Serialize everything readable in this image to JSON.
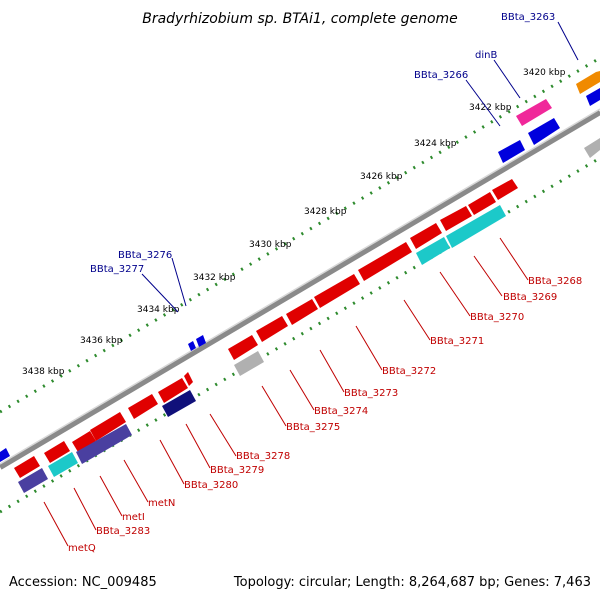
{
  "title": "Bradyrhizobium sp. BTAi1, complete genome",
  "accession": "Accession: NC_009485",
  "topology": "Topology: circular; Length: 8,264,687 bp; Genes: 7,463",
  "scale_labels": [
    "3420 kbp",
    "3422 kbp",
    "3424 kbp",
    "3426 kbp",
    "3428 kbp",
    "3430 kbp",
    "3432 kbp",
    "3434 kbp",
    "3436 kbp",
    "3438 kbp"
  ],
  "outer_labels": [
    "BBta_3263",
    "dinB",
    "BBta_3266",
    "BBta_3276",
    "BBta_3277"
  ],
  "inner_labels": [
    "BBta_3268",
    "BBta_3269",
    "BBta_3270",
    "BBta_3271",
    "BBta_3272",
    "BBta_3273",
    "BBta_3274",
    "BBta_3275",
    "BBta_3278",
    "BBta_3279",
    "BBta_3280",
    "metN",
    "metI",
    "BBta_3283",
    "metQ"
  ],
  "colors": {
    "forward_gene": "#e00000",
    "reverse_label": "#c00000",
    "forward_label": "#00008b",
    "blue_gene": "#0000dd",
    "cyan_gene": "#1cc9c9",
    "slate_gene": "#4a3fa0",
    "navy_gene": "#10107a",
    "grey_gene": "#b0b0b0",
    "orange_gene": "#f08a00",
    "pink_gene": "#f0289a",
    "dotted_track": "#2e8b2e",
    "backbone": "#8a8a8a"
  }
}
